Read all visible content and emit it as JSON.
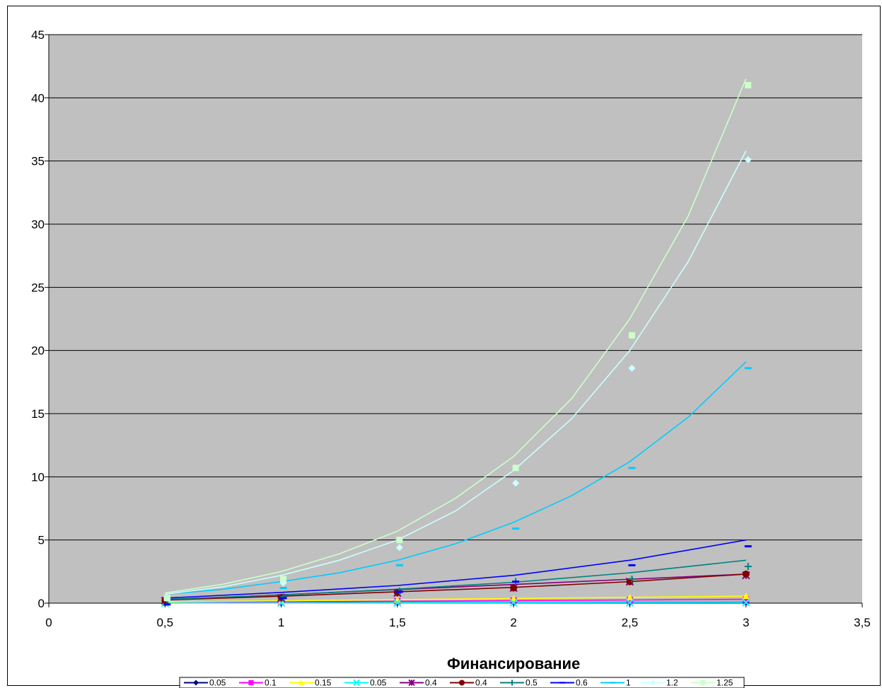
{
  "chart_data": {
    "type": "scatter",
    "title": "",
    "xlabel": "Финансирование",
    "ylabel": "",
    "xlim": [
      0,
      3.5
    ],
    "ylim": [
      0,
      45
    ],
    "x_ticks": [
      "0",
      "0,5",
      "1",
      "1,5",
      "2",
      "2,5",
      "3",
      "3,5"
    ],
    "y_ticks": [
      "0",
      "5",
      "10",
      "15",
      "20",
      "25",
      "30",
      "35",
      "40",
      "45"
    ],
    "grid": "horizontal",
    "plot_background": "#c0c0c0",
    "legend_position": "bottom",
    "series": [
      {
        "name": "0.05",
        "color": "#000080",
        "marker": "diamond",
        "points": [
          [
            0.5,
            0.02
          ],
          [
            1,
            0.03
          ],
          [
            1.5,
            0.04
          ],
          [
            2,
            0.05
          ],
          [
            2.5,
            0.06
          ],
          [
            3,
            0.07
          ]
        ],
        "trend": [
          [
            0.5,
            0.02
          ],
          [
            3,
            0.07
          ]
        ]
      },
      {
        "name": "0.1",
        "color": "#ff00ff",
        "marker": "square",
        "points": [
          [
            0.5,
            0.05
          ],
          [
            1,
            0.1
          ],
          [
            1.5,
            0.15
          ],
          [
            2,
            0.2
          ],
          [
            2.5,
            0.25
          ],
          [
            3,
            0.3
          ]
        ],
        "trend": [
          [
            0.5,
            0.05
          ],
          [
            3,
            0.3
          ]
        ]
      },
      {
        "name": "0.15",
        "color": "#ffff00",
        "marker": "triangle",
        "points": [
          [
            0.5,
            0.08
          ],
          [
            1,
            0.15
          ],
          [
            1.5,
            0.25
          ],
          [
            2,
            0.35
          ],
          [
            2.5,
            0.45
          ],
          [
            3,
            0.55
          ]
        ],
        "trend": [
          [
            0.5,
            0.1
          ],
          [
            3,
            0.55
          ]
        ]
      },
      {
        "name": "0.05",
        "color": "#00ffff",
        "marker": "x",
        "points": [
          [
            0.5,
            0.01
          ],
          [
            1,
            0.02
          ],
          [
            1.5,
            0.03
          ],
          [
            2,
            0.03
          ],
          [
            2.5,
            0.04
          ],
          [
            3,
            0.05
          ]
        ],
        "trend": [
          [
            0.5,
            0.01
          ],
          [
            3,
            0.05
          ]
        ]
      },
      {
        "name": "0.4",
        "color": "#800080",
        "marker": "star",
        "points": [
          [
            0.5,
            0.2
          ],
          [
            1,
            0.4
          ],
          [
            1.5,
            0.8
          ],
          [
            2,
            1.2
          ],
          [
            2.5,
            1.7
          ],
          [
            3,
            2.2
          ]
        ],
        "trend": [
          [
            0.5,
            0.25
          ],
          [
            3,
            2.3
          ]
        ]
      },
      {
        "name": "0.4",
        "color": "#800000",
        "marker": "circle",
        "points": [
          [
            0.5,
            0.22
          ],
          [
            1,
            0.45
          ],
          [
            1.5,
            0.85
          ],
          [
            2,
            1.2
          ],
          [
            2.5,
            1.7
          ],
          [
            3,
            2.3
          ]
        ],
        "trend": [
          [
            0.5,
            0.25
          ],
          [
            1,
            0.55
          ],
          [
            1.5,
            0.9
          ],
          [
            2,
            1.25
          ],
          [
            2.5,
            1.7
          ],
          [
            3,
            2.3
          ]
        ]
      },
      {
        "name": "0.5",
        "color": "#008080",
        "marker": "plus",
        "points": [
          [
            0.5,
            0.25
          ],
          [
            1,
            0.5
          ],
          [
            1.5,
            0.95
          ],
          [
            2,
            1.7
          ],
          [
            2.5,
            1.9
          ],
          [
            3,
            2.9
          ]
        ],
        "trend": [
          [
            0.5,
            0.3
          ],
          [
            1,
            0.65
          ],
          [
            1.5,
            1.1
          ],
          [
            2,
            1.65
          ],
          [
            2.5,
            2.4
          ],
          [
            3,
            3.4
          ]
        ]
      },
      {
        "name": "0.6",
        "color": "#0000ff",
        "marker": "dash",
        "points": [
          [
            0.5,
            -0.1
          ],
          [
            1,
            0.4
          ],
          [
            1.5,
            0.9
          ],
          [
            2,
            1.7
          ],
          [
            2.5,
            3.0
          ],
          [
            3,
            4.5
          ]
        ],
        "trend": [
          [
            0.5,
            0.4
          ],
          [
            1,
            0.85
          ],
          [
            1.5,
            1.4
          ],
          [
            2,
            2.2
          ],
          [
            2.5,
            3.4
          ],
          [
            3,
            5.0
          ]
        ]
      },
      {
        "name": "1",
        "color": "#00ccff",
        "marker": "dash",
        "points": [
          [
            0.5,
            0.3
          ],
          [
            1,
            1.2
          ],
          [
            1.5,
            3.0
          ],
          [
            2,
            5.9
          ],
          [
            2.5,
            10.7
          ],
          [
            3,
            18.6
          ]
        ],
        "trend": [
          [
            0.5,
            0.7
          ],
          [
            0.75,
            1.1
          ],
          [
            1,
            1.7
          ],
          [
            1.25,
            2.4
          ],
          [
            1.5,
            3.4
          ],
          [
            1.75,
            4.7
          ],
          [
            2,
            6.4
          ],
          [
            2.25,
            8.5
          ],
          [
            2.5,
            11.2
          ],
          [
            2.75,
            14.7
          ],
          [
            3,
            19.1
          ]
        ]
      },
      {
        "name": "1.2",
        "color": "#ccffff",
        "marker": "diamond",
        "points": [
          [
            0.5,
            0.4
          ],
          [
            1,
            1.6
          ],
          [
            1.5,
            4.4
          ],
          [
            2,
            9.5
          ],
          [
            2.5,
            18.6
          ],
          [
            3,
            35.1
          ]
        ],
        "trend": [
          [
            0.5,
            0.7
          ],
          [
            0.75,
            1.3
          ],
          [
            1,
            2.2
          ],
          [
            1.25,
            3.4
          ],
          [
            1.5,
            5.0
          ],
          [
            1.75,
            7.3
          ],
          [
            2,
            10.5
          ],
          [
            2.25,
            14.6
          ],
          [
            2.5,
            20.0
          ],
          [
            2.75,
            27.0
          ],
          [
            3,
            35.8
          ]
        ]
      },
      {
        "name": "1.25",
        "color": "#ccffcc",
        "marker": "square",
        "points": [
          [
            0.5,
            0.4
          ],
          [
            1,
            1.9
          ],
          [
            1.5,
            5.0
          ],
          [
            2,
            10.7
          ],
          [
            2.5,
            21.2
          ],
          [
            3,
            41.0
          ]
        ],
        "trend": [
          [
            0.5,
            0.8
          ],
          [
            0.75,
            1.5
          ],
          [
            1,
            2.5
          ],
          [
            1.25,
            3.9
          ],
          [
            1.5,
            5.7
          ],
          [
            1.75,
            8.3
          ],
          [
            2,
            11.6
          ],
          [
            2.25,
            16.2
          ],
          [
            2.5,
            22.5
          ],
          [
            2.75,
            30.6
          ],
          [
            3,
            41.5
          ]
        ]
      }
    ]
  }
}
